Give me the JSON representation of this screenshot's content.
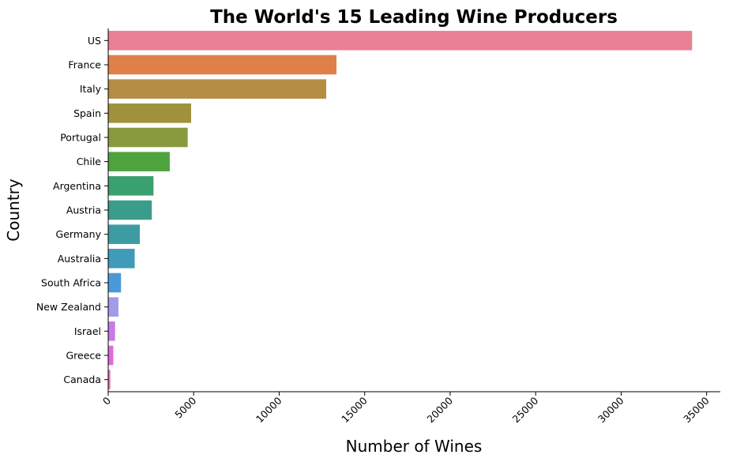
{
  "chart_data": {
    "type": "bar",
    "orientation": "horizontal",
    "title": "The World's 15 Leading Wine Producers",
    "xlabel": "Number of Wines",
    "ylabel": "Country",
    "xlim": [
      0,
      35800
    ],
    "xticks": [
      0,
      5000,
      10000,
      15000,
      20000,
      25000,
      30000,
      35000
    ],
    "xtick_rotation": 45,
    "grid": false,
    "categories": [
      "US",
      "France",
      "Italy",
      "Spain",
      "Portugal",
      "Chile",
      "Argentina",
      "Austria",
      "Germany",
      "Australia",
      "South Africa",
      "New Zealand",
      "Israel",
      "Greece",
      "Canada"
    ],
    "values": [
      34150,
      13350,
      12750,
      4850,
      4650,
      3600,
      2650,
      2550,
      1850,
      1550,
      750,
      600,
      400,
      300,
      120
    ],
    "colors": [
      "#e98093",
      "#df8048",
      "#b58d42",
      "#a0913c",
      "#889a3e",
      "#4fa33e",
      "#3aa06f",
      "#3b9c8c",
      "#3d9ca2",
      "#3f9bb8",
      "#4a9ad9",
      "#a39be8",
      "#c47de8",
      "#df6bd8",
      "#e46fb8"
    ]
  }
}
